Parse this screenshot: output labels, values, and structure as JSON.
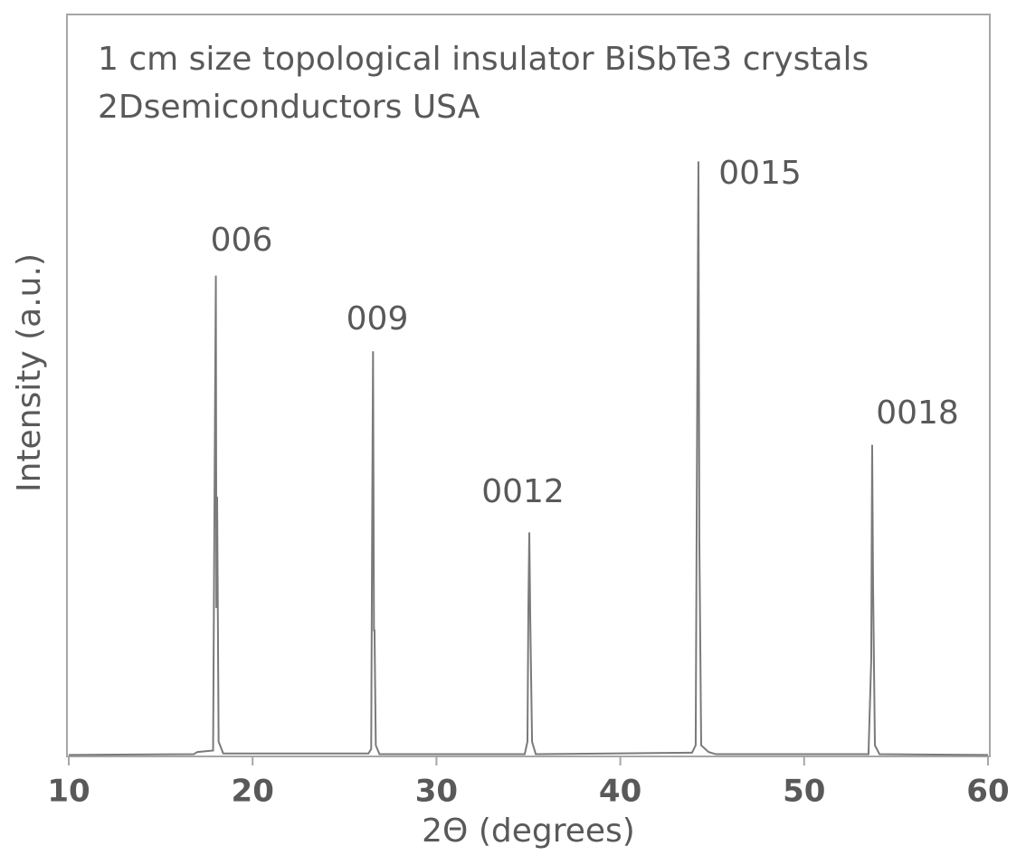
{
  "chart_data": {
    "type": "line",
    "title": "1 cm size topological insulator BiSbTe3 crystals",
    "subtitle": "2Dsemiconductors USA",
    "x_label": "2Θ (degrees)",
    "y_label": "Intensity (a.u.)",
    "annotations": [
      "006",
      "009",
      "0012",
      "0015",
      "0018"
    ],
    "xlim": [
      9.9,
      60.1
    ],
    "xticks": [
      10,
      20,
      30,
      40,
      50,
      60
    ],
    "ylim": [
      0,
      100
    ],
    "color": "#7a7a7a",
    "x": [
      10,
      16.8,
      17.0,
      17.85,
      17.95,
      18.0,
      18.03,
      18.07,
      18.15,
      18.4,
      26.3,
      26.45,
      26.5,
      26.55,
      26.6,
      26.63,
      26.7,
      26.9,
      34.8,
      34.95,
      35.0,
      35.05,
      35.1,
      35.2,
      35.4,
      43.9,
      44.1,
      44.2,
      44.25,
      44.3,
      44.4,
      44.8,
      45.2,
      53.5,
      53.65,
      53.7,
      53.75,
      53.85,
      54.1,
      60
    ],
    "values": [
      0.2,
      0.3,
      0.6,
      0.8,
      45,
      64.8,
      20,
      35,
      2,
      0.4,
      0.4,
      1,
      30,
      54.6,
      17,
      17,
      1.5,
      0.3,
      0.3,
      2,
      20,
      30.2,
      19,
      2,
      0.3,
      0.5,
      1.5,
      56,
      80.2,
      29,
      1.5,
      0.6,
      0.3,
      0.3,
      13,
      42,
      23,
      1.5,
      0.3,
      0.2
    ]
  }
}
